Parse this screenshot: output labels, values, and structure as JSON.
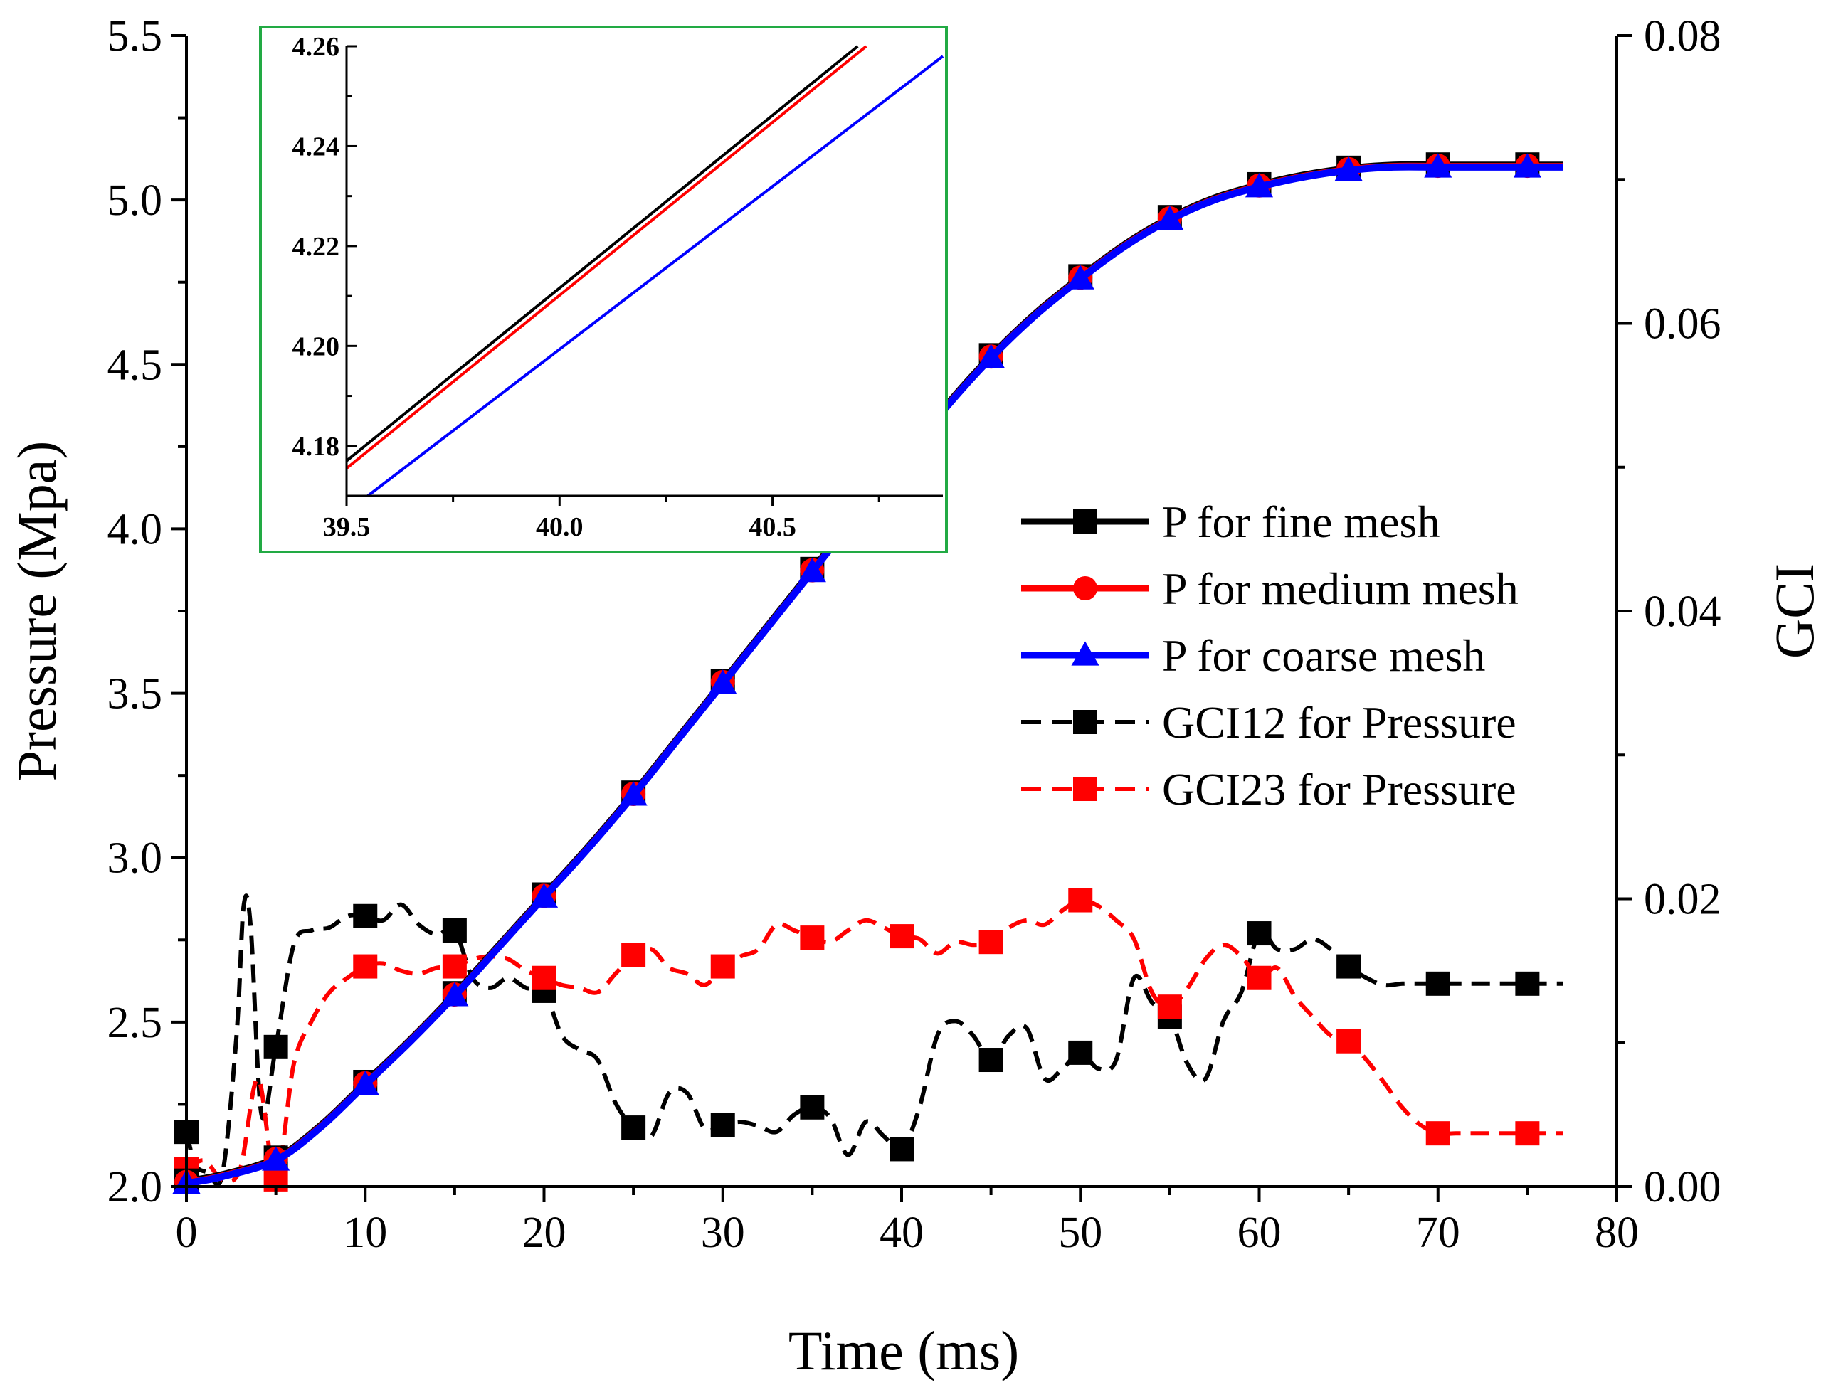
{
  "chart_data": {
    "type": "line",
    "title": "",
    "xlabel": "Time (ms)",
    "ylabel": "Pressure (Mpa)",
    "y2label": "GCI",
    "xlim": [
      0,
      80
    ],
    "ylim": [
      2.0,
      5.5
    ],
    "y2lim": [
      0.0,
      0.08
    ],
    "grid": false,
    "legend_position": "center-right",
    "x_ticks": [
      "0",
      "10",
      "20",
      "30",
      "40",
      "50",
      "60",
      "70",
      "80"
    ],
    "y_ticks": [
      "2.0",
      "2.5",
      "3.0",
      "3.5",
      "4.0",
      "4.5",
      "5.0",
      "5.5"
    ],
    "y2_ticks": [
      "0.00",
      "0.02",
      "0.04",
      "0.06",
      "0.08"
    ],
    "marker_x": [
      0,
      5,
      10,
      15,
      20,
      25,
      30,
      35,
      40,
      45,
      50,
      55,
      60,
      65,
      70,
      75
    ],
    "pressure_curve": {
      "x": [
        0,
        2,
        5,
        7.5,
        10,
        12.5,
        15,
        17.5,
        20,
        22.5,
        25,
        27.5,
        30,
        32.5,
        35,
        37.5,
        40,
        42.5,
        45,
        47.5,
        50,
        52.5,
        55,
        57.5,
        60,
        62.5,
        65,
        67.5,
        70,
        72.5,
        75,
        77
      ],
      "y": [
        2.01,
        2.03,
        2.08,
        2.18,
        2.31,
        2.44,
        2.58,
        2.73,
        2.88,
        3.03,
        3.19,
        3.36,
        3.53,
        3.7,
        3.87,
        4.04,
        4.2,
        4.37,
        4.52,
        4.65,
        4.76,
        4.86,
        4.94,
        5.0,
        5.04,
        5.07,
        5.09,
        5.1,
        5.1,
        5.1,
        5.1,
        5.1
      ]
    },
    "series": [
      {
        "name": "P for fine mesh",
        "axis": "left",
        "style": "solid",
        "marker": "square",
        "color": "#000000",
        "y_offset": 0.008
      },
      {
        "name": "P for medium mesh",
        "axis": "left",
        "style": "solid",
        "marker": "circle",
        "color": "#ff0000",
        "y_offset": 0.004
      },
      {
        "name": "P for coarse mesh",
        "axis": "left",
        "style": "solid",
        "marker": "triangle",
        "color": "#0000ff",
        "y_offset": 0.0
      },
      {
        "name": "GCI12 for Pressure",
        "axis": "right",
        "style": "dashed",
        "marker": "square",
        "color": "#000000",
        "marker_values": [
          0.0038,
          0.0097,
          0.0188,
          0.0178,
          0.0136,
          0.0041,
          0.0043,
          0.0055,
          0.0026,
          0.0088,
          0.0093,
          0.0118,
          0.0176,
          0.0153,
          0.0141,
          0.0141
        ],
        "line_x": [
          0,
          0.5,
          1.2,
          2,
          2.8,
          3.2,
          3.6,
          4.2,
          5,
          6,
          7,
          8,
          9,
          10,
          11,
          12,
          13,
          14,
          15,
          16,
          17,
          18,
          19,
          20,
          21,
          22,
          23,
          24,
          25,
          26,
          27,
          28,
          29,
          30,
          31,
          32,
          33,
          34,
          35,
          36,
          37,
          38,
          39,
          40,
          41,
          42,
          43,
          44,
          45,
          46,
          47,
          48,
          49,
          50,
          51,
          52,
          53,
          54,
          55,
          56,
          57,
          58,
          59,
          60,
          61,
          62,
          63,
          64,
          65,
          66,
          67,
          68,
          69,
          70,
          71,
          72,
          73,
          74,
          75,
          76,
          77
        ],
        "line_y": [
          0.0038,
          0.0015,
          0.001,
          0.0008,
          0.0105,
          0.0195,
          0.018,
          0.005,
          0.0097,
          0.0168,
          0.0178,
          0.018,
          0.0188,
          0.0188,
          0.0185,
          0.0196,
          0.0182,
          0.0175,
          0.0178,
          0.0145,
          0.0138,
          0.0145,
          0.0138,
          0.0136,
          0.0105,
          0.0095,
          0.0088,
          0.0058,
          0.0041,
          0.0035,
          0.0065,
          0.0065,
          0.004,
          0.0043,
          0.0045,
          0.0042,
          0.0038,
          0.005,
          0.0055,
          0.0048,
          0.0022,
          0.0045,
          0.0035,
          0.0026,
          0.0055,
          0.0105,
          0.0115,
          0.0105,
          0.0088,
          0.0105,
          0.011,
          0.0075,
          0.0082,
          0.0093,
          0.0082,
          0.0088,
          0.0145,
          0.0128,
          0.0118,
          0.0085,
          0.0075,
          0.0115,
          0.0135,
          0.0176,
          0.0165,
          0.0165,
          0.0172,
          0.0165,
          0.0153,
          0.0145,
          0.014,
          0.0141,
          0.0141,
          0.0141,
          0.0141,
          0.0141,
          0.0141,
          0.0141,
          0.0141,
          0.0141,
          0.0141
        ]
      },
      {
        "name": "GCI23 for Pressure",
        "axis": "right",
        "style": "dashed",
        "marker": "square",
        "color": "#ff0000",
        "marker_values": [
          0.0012,
          0.0005,
          0.0153,
          0.0153,
          0.0145,
          0.0161,
          0.0153,
          0.0173,
          0.0174,
          0.017,
          0.0199,
          0.0125,
          0.0145,
          0.0101,
          0.0037,
          0.0037
        ],
        "line_x": [
          0,
          1,
          2,
          3,
          4,
          5,
          6,
          7,
          8,
          9,
          10,
          11,
          12,
          13,
          14,
          15,
          16,
          17,
          18,
          19,
          20,
          21,
          22,
          23,
          24,
          25,
          26,
          27,
          28,
          29,
          30,
          31,
          32,
          33,
          34,
          35,
          36,
          37,
          38,
          39,
          40,
          41,
          42,
          43,
          44,
          45,
          46,
          47,
          48,
          49,
          50,
          51,
          52,
          53,
          54,
          55,
          56,
          57,
          58,
          59,
          60,
          61,
          62,
          63,
          64,
          65,
          66,
          67,
          68,
          69,
          70,
          71,
          72,
          73,
          74,
          75,
          76,
          77
        ],
        "line_y": [
          0.0012,
          0.0018,
          0.0005,
          0.0012,
          0.0075,
          0.0005,
          0.0085,
          0.0115,
          0.0135,
          0.0145,
          0.0153,
          0.0155,
          0.015,
          0.0148,
          0.0152,
          0.0153,
          0.0158,
          0.016,
          0.0158,
          0.015,
          0.0145,
          0.014,
          0.0138,
          0.0135,
          0.0148,
          0.0161,
          0.0165,
          0.0152,
          0.0148,
          0.014,
          0.0153,
          0.016,
          0.0165,
          0.0182,
          0.0178,
          0.0173,
          0.017,
          0.0178,
          0.0185,
          0.018,
          0.0174,
          0.0172,
          0.0162,
          0.017,
          0.0168,
          0.017,
          0.018,
          0.0185,
          0.0182,
          0.0192,
          0.0199,
          0.0195,
          0.0185,
          0.0172,
          0.0135,
          0.0125,
          0.0138,
          0.0158,
          0.0168,
          0.016,
          0.0145,
          0.0152,
          0.0132,
          0.0118,
          0.0105,
          0.0101,
          0.0088,
          0.0072,
          0.0055,
          0.0043,
          0.0037,
          0.0037,
          0.0037,
          0.0037,
          0.0037,
          0.0037,
          0.0037,
          0.0037
        ]
      }
    ],
    "inset": {
      "xlim": [
        39.5,
        40.9
      ],
      "ylim": [
        4.17,
        4.26
      ],
      "x_ticks": [
        "39.5",
        "40.0",
        "40.5"
      ],
      "y_ticks": [
        "4.18",
        "4.20",
        "4.22",
        "4.24",
        "4.26"
      ],
      "lines": [
        {
          "name": "P for fine mesh",
          "color": "#000000",
          "x": [
            39.5,
            40.7
          ],
          "y": [
            4.177,
            4.26
          ]
        },
        {
          "name": "P for medium mesh",
          "color": "#ff0000",
          "x": [
            39.5,
            40.72
          ],
          "y": [
            4.1755,
            4.26
          ]
        },
        {
          "name": "P for coarse mesh",
          "color": "#0000ff",
          "x": [
            39.55,
            40.9
          ],
          "y": [
            4.17,
            4.258
          ]
        }
      ],
      "highlight_box": {
        "x": [
          40.65,
          41.05
        ],
        "y": [
          4.15,
          4.22
        ]
      }
    }
  }
}
